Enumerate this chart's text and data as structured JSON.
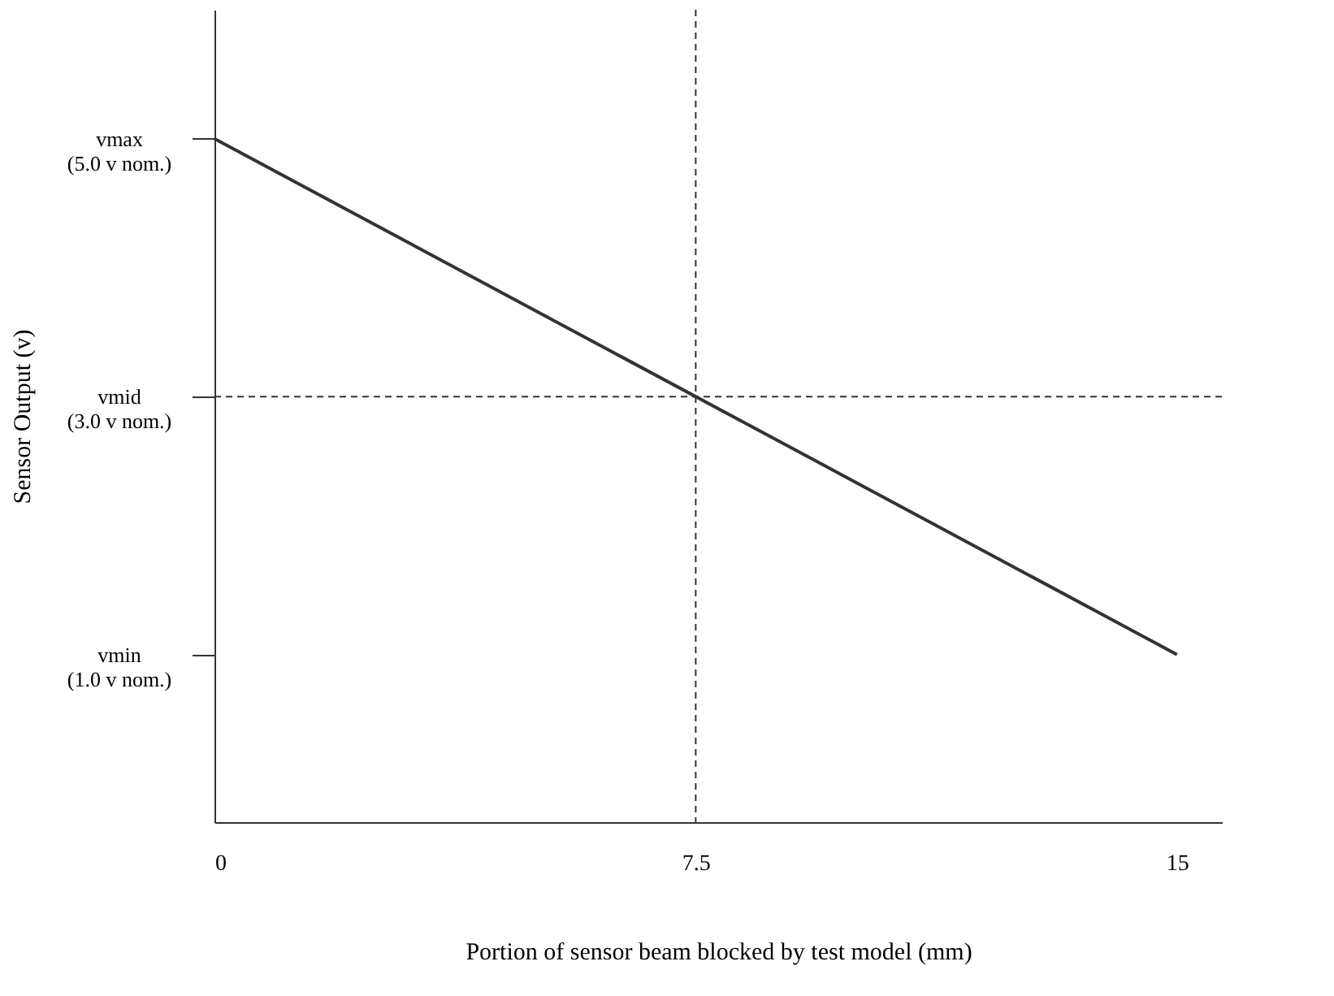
{
  "chart_data": {
    "type": "line",
    "xlabel": "Portion of sensor beam blocked by test model (mm)",
    "ylabel": "Sensor Output (v)",
    "x": [
      0,
      15
    ],
    "series": [
      {
        "color": "#333333",
        "values": [
          5,
          1
        ]
      }
    ],
    "xlim": [
      0,
      15.7
    ],
    "ylim": [
      -0.3,
      6.0
    ],
    "xticks": [
      0,
      7.5,
      15
    ],
    "yticks": [
      {
        "value": 1,
        "label": "vmin\n(1.0 v nom.)"
      },
      {
        "value": 3,
        "label": "vmid\n(3.0 v nom.)"
      },
      {
        "value": 5,
        "label": "vmax\n(5.0 v nom.)"
      }
    ],
    "ref_lines": [
      {
        "axis": "x",
        "value": 7.5,
        "line_style": "dashed"
      },
      {
        "axis": "y",
        "value": 3,
        "line_style": "dashed"
      }
    ],
    "grid": false,
    "marker": "none",
    "line_style": "solid"
  }
}
